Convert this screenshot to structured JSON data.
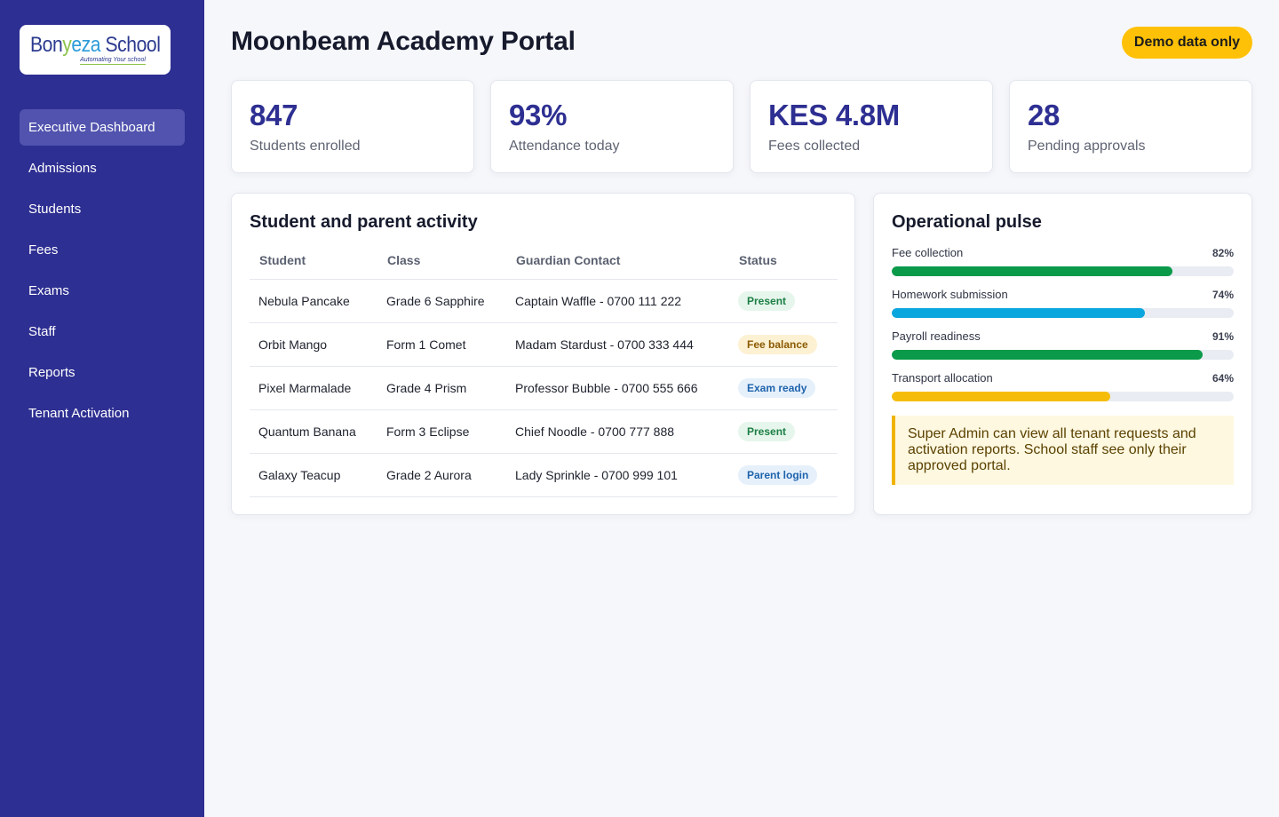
{
  "brand": {
    "logo_part1": "Bon",
    "logo_part2": "y",
    "logo_part3": "eza",
    "logo_part4": " School",
    "tagline": "Automating Your school"
  },
  "sidebar": {
    "items": [
      {
        "label": "Executive Dashboard",
        "active": true
      },
      {
        "label": "Admissions"
      },
      {
        "label": "Students"
      },
      {
        "label": "Fees"
      },
      {
        "label": "Exams"
      },
      {
        "label": "Staff"
      },
      {
        "label": "Reports"
      },
      {
        "label": "Tenant Activation"
      }
    ]
  },
  "header": {
    "title": "Moonbeam Academy Portal",
    "badge": "Demo data only"
  },
  "stats": [
    {
      "value": "847",
      "label": "Students enrolled"
    },
    {
      "value": "93%",
      "label": "Attendance today"
    },
    {
      "value": "KES 4.8M",
      "label": "Fees collected"
    },
    {
      "value": "28",
      "label": "Pending approvals"
    }
  ],
  "activity": {
    "title": "Student and parent activity",
    "columns": [
      "Student",
      "Class",
      "Guardian Contact",
      "Status"
    ],
    "rows": [
      {
        "student": "Nebula Pancake",
        "class": "Grade 6 Sapphire",
        "guardian": "Captain Waffle - 0700 111 222",
        "status": "Present",
        "tone": "green"
      },
      {
        "student": "Orbit Mango",
        "class": "Form 1 Comet",
        "guardian": "Madam Stardust - 0700 333 444",
        "status": "Fee balance",
        "tone": "amber"
      },
      {
        "student": "Pixel Marmalade",
        "class": "Grade 4 Prism",
        "guardian": "Professor Bubble - 0700 555 666",
        "status": "Exam ready",
        "tone": "blue"
      },
      {
        "student": "Quantum Banana",
        "class": "Form 3 Eclipse",
        "guardian": "Chief Noodle - 0700 777 888",
        "status": "Present",
        "tone": "green"
      },
      {
        "student": "Galaxy Teacup",
        "class": "Grade 2 Aurora",
        "guardian": "Lady Sprinkle - 0700 999 101",
        "status": "Parent login",
        "tone": "blue"
      }
    ]
  },
  "pulse": {
    "title": "Operational pulse",
    "items": [
      {
        "label": "Fee collection",
        "percent": 82,
        "percent_label": "82%",
        "color": "#0a9a4a"
      },
      {
        "label": "Homework submission",
        "percent": 74,
        "percent_label": "74%",
        "color": "#0aa6de"
      },
      {
        "label": "Payroll readiness",
        "percent": 91,
        "percent_label": "91%",
        "color": "#0a9a4a"
      },
      {
        "label": "Transport allocation",
        "percent": 64,
        "percent_label": "64%",
        "color": "#f5bd0a"
      }
    ],
    "notice": "Super Admin can view all tenant requests and activation reports. School staff see only their approved portal."
  }
}
